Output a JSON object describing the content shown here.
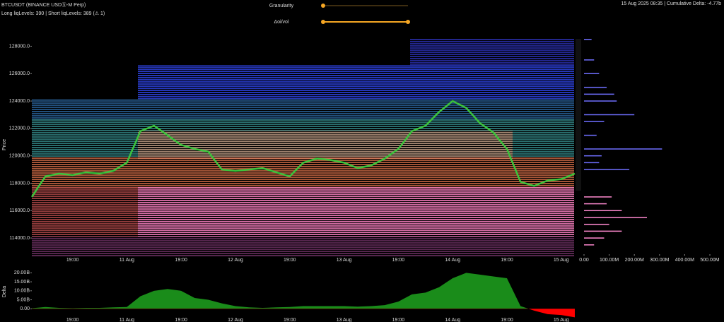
{
  "header": {
    "symbol": "BTCUSDT (BINANCE USDⓈ-M Perp)",
    "levels": "Long liqLevels: 390 | Short liqLevels: 389 (⚠ 1)",
    "status": "15 Aug 2025 08:35 | Cumulative Delta: -4.77b"
  },
  "controls": [
    {
      "label": "Granularity"
    },
    {
      "label": "Δoi/vol"
    }
  ],
  "chart_data": [
    {
      "type": "line",
      "y_label": "Price",
      "color": "#3cc43c",
      "categories": [
        null,
        null,
        null,
        "19:00",
        null,
        null,
        null,
        "11 Aug",
        null,
        null,
        null,
        "19:00",
        null,
        null,
        null,
        "12 Aug",
        null,
        null,
        null,
        "19:00",
        null,
        null,
        null,
        "13 Aug",
        null,
        null,
        null,
        "19:00",
        null,
        null,
        null,
        "14 Aug",
        null,
        null,
        null,
        "19:00",
        null,
        null,
        null,
        "15 Aug",
        null
      ],
      "values": [
        117000,
        118500,
        118700,
        118600,
        118800,
        118700,
        118900,
        119500,
        121800,
        122200,
        121500,
        120800,
        120500,
        120300,
        119000,
        118900,
        119000,
        119100,
        118800,
        118500,
        119500,
        119800,
        119700,
        119500,
        119100,
        119300,
        119800,
        120500,
        121800,
        122200,
        123200,
        124000,
        123500,
        122400,
        121700,
        120500,
        118100,
        117800,
        118200,
        118300,
        118700
      ],
      "ylim": [
        112200,
        128900
      ],
      "yticks": [
        {
          "value": 114000,
          "label": "114000.0"
        },
        {
          "value": 116000,
          "label": "116000.0"
        },
        {
          "value": 118000,
          "label": "118000.0"
        },
        {
          "value": 120000,
          "label": "120000.0"
        },
        {
          "value": 122000,
          "label": "122000.0"
        },
        {
          "value": 124000,
          "label": "124000.0"
        },
        {
          "value": 126000,
          "label": "126000.0"
        },
        {
          "value": 128000,
          "label": "128000.0"
        }
      ]
    },
    {
      "type": "hbar",
      "series": [
        {
          "color": "#6f6fff",
          "y": [
            128500,
            127000,
            126000,
            125000,
            124500,
            124000,
            123000,
            122500,
            121500,
            120500,
            120000,
            119500,
            119000
          ],
          "values": [
            30,
            40,
            60,
            90,
            120,
            130,
            200,
            80,
            50,
            310,
            70,
            60,
            180
          ]
        },
        {
          "color": "#ff8ad0",
          "y": [
            117000,
            116500,
            116000,
            115500,
            115000,
            114500,
            114000,
            113500
          ],
          "values": [
            110,
            90,
            150,
            250,
            100,
            150,
            80,
            40
          ]
        }
      ],
      "xlim": [
        0,
        500
      ],
      "xticks": [
        {
          "value": 0,
          "label": "0.00"
        },
        {
          "value": 100,
          "label": "100.00M"
        },
        {
          "value": 200,
          "label": "200.00M"
        },
        {
          "value": 300,
          "label": "300.00M"
        },
        {
          "value": 400,
          "label": "400.00M"
        },
        {
          "value": 500,
          "label": "500.00M"
        }
      ]
    },
    {
      "type": "area",
      "y_label": "Delta",
      "color": "#1a8c1a",
      "negative_color": "#ff0000",
      "categories": [
        null,
        null,
        null,
        "19:00",
        null,
        null,
        null,
        "11 Aug",
        null,
        null,
        null,
        "19:00",
        null,
        null,
        null,
        "12 Aug",
        null,
        null,
        null,
        "19:00",
        null,
        null,
        null,
        "13 Aug",
        null,
        null,
        null,
        "19:00",
        null,
        null,
        null,
        "14 Aug",
        null,
        null,
        null,
        "19:00",
        null,
        null,
        null,
        "15 Aug",
        null
      ],
      "values": [
        0.3,
        1,
        0.5,
        0.3,
        0.5,
        0.5,
        0.8,
        1,
        7,
        10,
        11,
        10,
        6,
        5,
        3,
        1.5,
        0.8,
        0.5,
        0.8,
        1,
        1.5,
        1.5,
        1.5,
        1.5,
        1.2,
        1.5,
        2,
        4,
        8,
        9,
        12,
        17,
        20,
        19,
        18,
        17,
        1.5,
        -1,
        -3,
        -3.5,
        -4.77
      ],
      "ylim": [
        -5,
        22.5
      ],
      "yticks": [
        {
          "value": 0,
          "label": "0.00"
        },
        {
          "value": 5,
          "label": "5.00B"
        },
        {
          "value": 10,
          "label": "10.00B"
        },
        {
          "value": 15,
          "label": "15.00B"
        },
        {
          "value": 20,
          "label": "20.00B"
        }
      ]
    }
  ]
}
